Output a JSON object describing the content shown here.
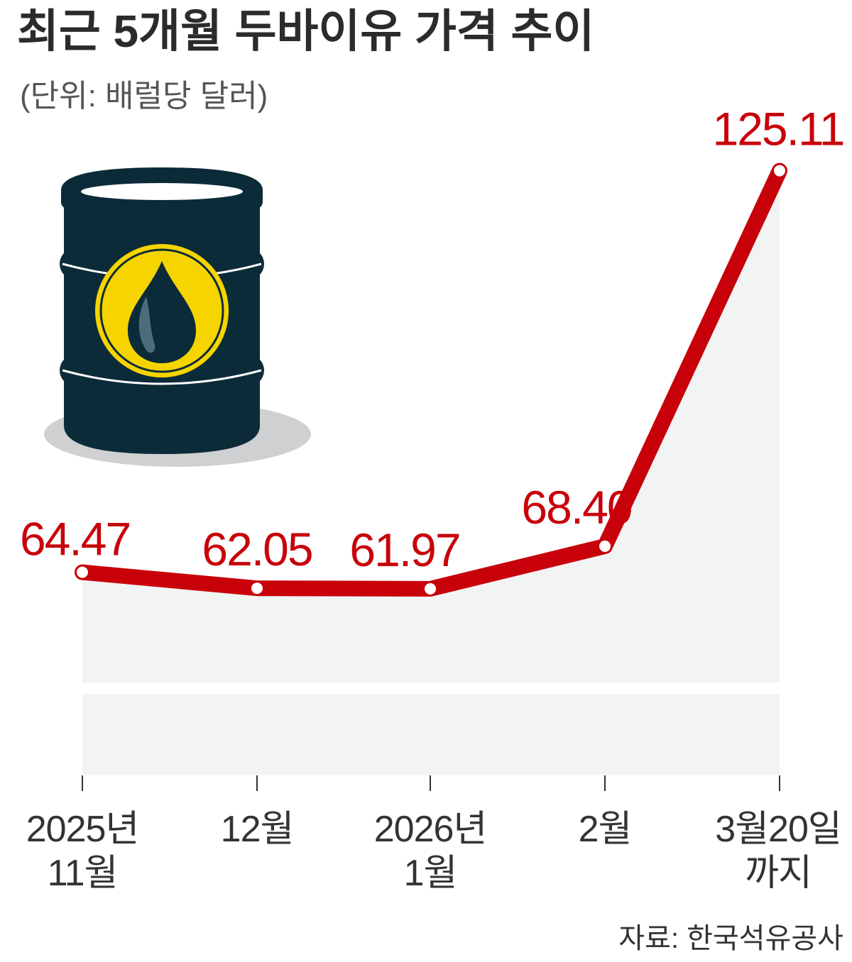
{
  "title": "최근 5개월 두바이유 가격 추이",
  "subtitle": "(단위: 배럴당 달러)",
  "source": "자료: 한국석유공사",
  "colors": {
    "line": "#c8000a",
    "area": "#f2f3f3",
    "barrel": "#0c2b38",
    "emblem": "#f5d400"
  },
  "icon": "oil-barrel-icon",
  "chart_data": {
    "type": "line",
    "title": "최근 5개월 두바이유 가격 추이",
    "ylabel": "(단위: 배럴당 달러)",
    "categories": [
      [
        "2025년",
        "11월"
      ],
      [
        "12월"
      ],
      [
        "2026년",
        "1월"
      ],
      [
        "2월"
      ],
      [
        "3월20일",
        "까지"
      ]
    ],
    "values": [
      64.47,
      62.05,
      61.97,
      68.4,
      125.11
    ],
    "value_labels": [
      "64.47",
      "62.05",
      "61.97",
      "68.40",
      "125.11"
    ],
    "ylim": [
      0,
      130
    ],
    "grid": false,
    "legend": "none"
  }
}
